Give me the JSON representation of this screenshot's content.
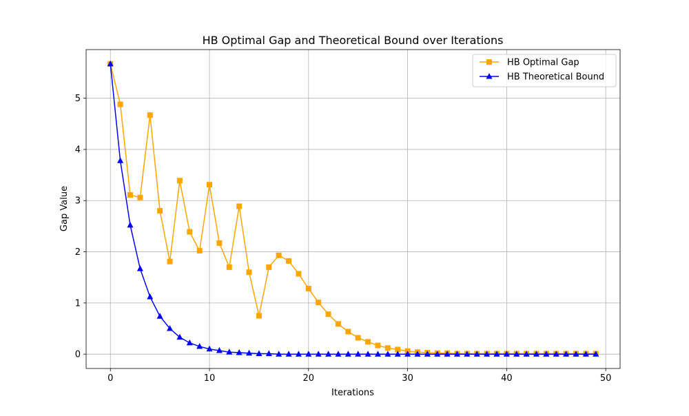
{
  "chart_data": {
    "type": "line",
    "title": "HB Optimal Gap and Theoretical Bound over Iterations",
    "xlabel": "Iterations",
    "ylabel": "Gap Value",
    "xlim": [
      -2.45,
      51.45
    ],
    "ylim": [
      -0.28,
      5.95
    ],
    "xticks": [
      0,
      10,
      20,
      30,
      40,
      50
    ],
    "yticks": [
      0,
      1,
      2,
      3,
      4,
      5
    ],
    "grid": true,
    "legend_position": "top-right",
    "x": [
      0,
      1,
      2,
      3,
      4,
      5,
      6,
      7,
      8,
      9,
      10,
      11,
      12,
      13,
      14,
      15,
      16,
      17,
      18,
      19,
      20,
      21,
      22,
      23,
      24,
      25,
      26,
      27,
      28,
      29,
      30,
      31,
      32,
      33,
      34,
      35,
      36,
      37,
      38,
      39,
      40,
      41,
      42,
      43,
      44,
      45,
      46,
      47,
      48,
      49
    ],
    "series": [
      {
        "name": "HB Optimal Gap",
        "color": "#ffa500",
        "marker": "square",
        "values": [
          5.67,
          4.88,
          3.11,
          3.06,
          4.67,
          2.8,
          1.81,
          3.39,
          2.39,
          2.02,
          3.31,
          2.17,
          1.7,
          2.89,
          1.6,
          0.75,
          1.7,
          1.93,
          1.82,
          1.57,
          1.28,
          1.01,
          0.78,
          0.59,
          0.44,
          0.32,
          0.24,
          0.17,
          0.12,
          0.09,
          0.06,
          0.04,
          0.03,
          0.02,
          0.02,
          0.01,
          0.01,
          0.01,
          0.01,
          0.01,
          0.01,
          0.01,
          0.01,
          0.01,
          0.01,
          0.01,
          0.01,
          0.01,
          0.01,
          0.01
        ]
      },
      {
        "name": "HB Theoretical Bound",
        "color": "#0000ff",
        "marker": "triangle",
        "values": [
          5.67,
          3.78,
          2.52,
          1.67,
          1.12,
          0.74,
          0.5,
          0.33,
          0.22,
          0.15,
          0.1,
          0.07,
          0.04,
          0.03,
          0.02,
          0.01,
          0.01,
          0.0,
          0.0,
          0.0,
          0.0,
          0.0,
          0.0,
          0.0,
          0.0,
          0.0,
          0.0,
          0.0,
          0.0,
          0.0,
          0.0,
          0.0,
          0.0,
          0.0,
          0.0,
          0.0,
          0.0,
          0.0,
          0.0,
          0.0,
          0.0,
          0.0,
          0.0,
          0.0,
          0.0,
          0.0,
          0.0,
          0.0,
          0.0,
          0.0
        ]
      }
    ]
  }
}
